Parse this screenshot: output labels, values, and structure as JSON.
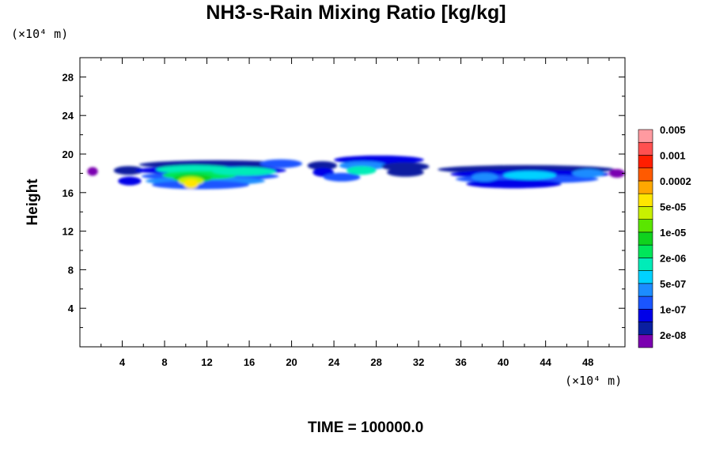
{
  "chart_data": {
    "type": "heatmap",
    "title": "NH3-s-Rain Mixing Ratio [kg/kg]",
    "ylabel": "Height",
    "xlabel": "",
    "x_unit": "(×10⁴ m)",
    "y_unit": "(×10⁴ m)",
    "xlim": [
      0,
      51.5
    ],
    "ylim": [
      0,
      30
    ],
    "x_ticks": [
      4,
      8,
      12,
      16,
      20,
      24,
      28,
      32,
      36,
      40,
      44,
      48
    ],
    "y_ticks": [
      4,
      8,
      12,
      16,
      20,
      24,
      28
    ],
    "annotation": "TIME = 100000.0",
    "colorbar": {
      "colors": [
        "#7a00b0",
        "#0a1fa0",
        "#0000e8",
        "#1a55ff",
        "#1c8cff",
        "#00d2ff",
        "#00ecb8",
        "#00e65a",
        "#10d21e",
        "#5ae600",
        "#c8f000",
        "#ffe600",
        "#ffa800",
        "#ff5a00",
        "#ff1e00",
        "#ff5050",
        "#ff9aa0"
      ],
      "labels": [
        "2e-08",
        "1e-07",
        "5e-07",
        "2e-06",
        "1e-05",
        "5e-05",
        "0.0002",
        "0.001",
        "0.005"
      ]
    },
    "field": [
      {
        "x0": 0.7,
        "x1": 1.7,
        "y": 18.2,
        "level": 0
      },
      {
        "x0": 3.2,
        "x1": 6.0,
        "y": 18.3,
        "level": 1
      },
      {
        "x0": 3.6,
        "x1": 5.8,
        "y": 17.2,
        "level": 2
      },
      {
        "x0": 5.6,
        "x1": 20.5,
        "y": 18.9,
        "level": 1
      },
      {
        "x0": 5.2,
        "x1": 19.5,
        "y": 18.3,
        "level": 2
      },
      {
        "x0": 5.8,
        "x1": 18.8,
        "y": 17.7,
        "level": 3
      },
      {
        "x0": 6.2,
        "x1": 17.5,
        "y": 17.2,
        "level": 4
      },
      {
        "x0": 6.8,
        "x1": 16.0,
        "y": 16.8,
        "level": 3
      },
      {
        "x0": 7.2,
        "x1": 14.5,
        "y": 18.4,
        "level": 6
      },
      {
        "x0": 7.8,
        "x1": 14.8,
        "y": 17.8,
        "level": 7
      },
      {
        "x0": 8.8,
        "x1": 12.5,
        "y": 17.5,
        "level": 8
      },
      {
        "x0": 9.3,
        "x1": 11.7,
        "y": 17.2,
        "level": 10
      },
      {
        "x0": 9.8,
        "x1": 11.2,
        "y": 16.9,
        "level": 11
      },
      {
        "x0": 12.5,
        "x1": 18.5,
        "y": 18.2,
        "level": 6
      },
      {
        "x0": 17.0,
        "x1": 21.0,
        "y": 19.0,
        "level": 3
      },
      {
        "x0": 21.5,
        "x1": 24.3,
        "y": 18.8,
        "level": 1
      },
      {
        "x0": 22.0,
        "x1": 24.0,
        "y": 18.1,
        "level": 2
      },
      {
        "x0": 23.0,
        "x1": 26.5,
        "y": 17.6,
        "level": 3
      },
      {
        "x0": 24.0,
        "x1": 32.5,
        "y": 19.4,
        "level": 2
      },
      {
        "x0": 24.5,
        "x1": 29.0,
        "y": 18.8,
        "level": 4
      },
      {
        "x0": 25.2,
        "x1": 28.0,
        "y": 18.3,
        "level": 6
      },
      {
        "x0": 28.5,
        "x1": 33.0,
        "y": 18.7,
        "level": 1
      },
      {
        "x0": 29.0,
        "x1": 32.5,
        "y": 18.1,
        "level": 1
      },
      {
        "x0": 33.8,
        "x1": 50.5,
        "y": 18.4,
        "level": 1
      },
      {
        "x0": 35.0,
        "x1": 50.0,
        "y": 17.9,
        "level": 2
      },
      {
        "x0": 35.5,
        "x1": 49.0,
        "y": 17.4,
        "level": 3
      },
      {
        "x0": 36.5,
        "x1": 45.5,
        "y": 16.9,
        "level": 2
      },
      {
        "x0": 37.0,
        "x1": 39.5,
        "y": 17.6,
        "level": 4
      },
      {
        "x0": 40.0,
        "x1": 45.0,
        "y": 17.8,
        "level": 5
      },
      {
        "x0": 46.5,
        "x1": 49.5,
        "y": 18.0,
        "level": 4
      },
      {
        "x0": 50.0,
        "x1": 51.5,
        "y": 18.0,
        "level": 0
      }
    ]
  }
}
